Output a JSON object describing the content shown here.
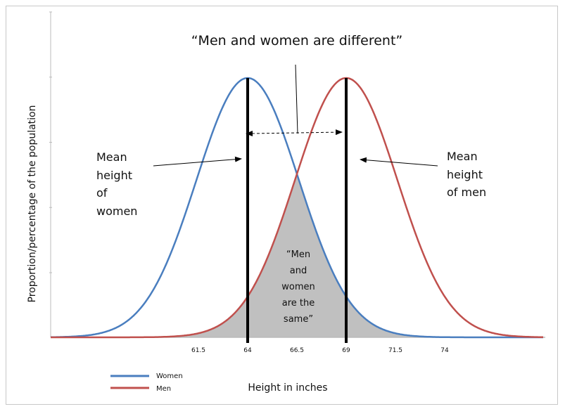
{
  "chart_data": {
    "type": "line",
    "title": "“Men and women are different”",
    "xlabel": "Height in inches",
    "ylabel": "Proportion/percentage of the population",
    "x_ticks": [
      "61.5",
      "64",
      "66.5",
      "69",
      "71.5",
      "74"
    ],
    "xlim": [
      54,
      79
    ],
    "grid": false,
    "legend_position": "bottom-left",
    "series": [
      {
        "name": "Women",
        "distribution": "normal",
        "mean": 64,
        "sd": 2.6,
        "color": "#4a7ebf"
      },
      {
        "name": "Men",
        "distribution": "normal",
        "mean": 69,
        "sd": 2.6,
        "color": "#c0504d"
      }
    ],
    "overlap_fill_color": "#c0c0c0",
    "annotations": {
      "mean_women": [
        "Mean",
        "height",
        "of",
        "women"
      ],
      "mean_men": [
        "Mean",
        "height",
        "of men"
      ],
      "overlap": [
        "“Men",
        "and",
        "women",
        "are the",
        "same”"
      ]
    }
  }
}
